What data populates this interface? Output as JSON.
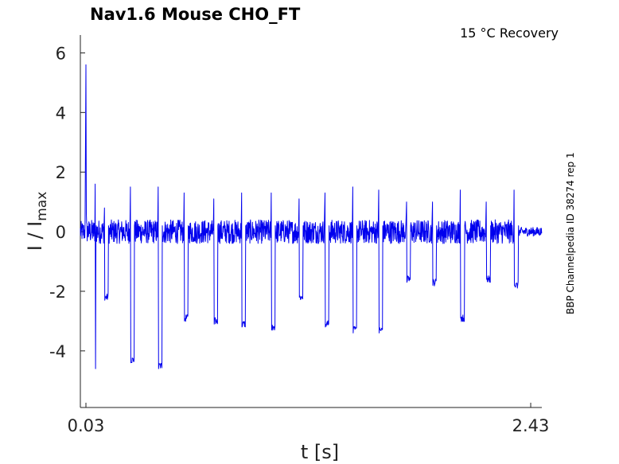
{
  "chart_data": {
    "type": "line",
    "title": "Nav1.6  Mouse  CHO_FT",
    "subtitle": "15 °C  Recovery",
    "side_note": "BBP Channelpedia ID 38274 rep 1",
    "xlabel": "t [s]",
    "ylabel_main": "I / I",
    "ylabel_sub": "max",
    "xlim": [
      0.0,
      2.49
    ],
    "ylim": [
      -5.9,
      6.6
    ],
    "x_ticks": [
      0.03,
      2.43
    ],
    "x_tick_labels": [
      "0.03",
      "2.43"
    ],
    "y_ticks": [
      -4,
      -2,
      0,
      2,
      4,
      6
    ],
    "y_tick_labels": [
      "-4",
      "-2",
      "0",
      "2",
      "4",
      "6"
    ],
    "grid": false,
    "line_color": "#0000ee",
    "initial_spike": {
      "x": 0.03,
      "peak": 5.6
    },
    "pulses": [
      {
        "t": 0.08,
        "peak": 1.6,
        "trough": -4.6,
        "steady": -0.2
      },
      {
        "t": 0.13,
        "peak": 0.8,
        "trough": -2.3,
        "steady": -2.2
      },
      {
        "t": 0.27,
        "peak": 1.5,
        "trough": -4.4,
        "steady": -4.3
      },
      {
        "t": 0.42,
        "peak": 1.5,
        "trough": -4.6,
        "steady": -4.5
      },
      {
        "t": 0.56,
        "peak": 1.3,
        "trough": -3.0,
        "steady": -2.9
      },
      {
        "t": 0.72,
        "peak": 1.1,
        "trough": -3.1,
        "steady": -3.0
      },
      {
        "t": 0.87,
        "peak": 1.3,
        "trough": -3.2,
        "steady": -3.1
      },
      {
        "t": 1.03,
        "peak": 1.3,
        "trough": -3.3,
        "steady": -3.2
      },
      {
        "t": 1.18,
        "peak": 1.1,
        "trough": -2.2,
        "steady": -2.2
      },
      {
        "t": 1.32,
        "peak": 1.3,
        "trough": -3.2,
        "steady": -3.1
      },
      {
        "t": 1.47,
        "peak": 1.5,
        "trough": -3.4,
        "steady": -3.3
      },
      {
        "t": 1.61,
        "peak": 1.4,
        "trough": -3.4,
        "steady": -3.3
      },
      {
        "t": 1.76,
        "peak": 1.0,
        "trough": -1.7,
        "steady": -1.6
      },
      {
        "t": 1.9,
        "peak": 1.0,
        "trough": -1.8,
        "steady": -1.7
      },
      {
        "t": 2.05,
        "peak": 1.4,
        "trough": -2.9,
        "steady": -2.9
      },
      {
        "t": 2.19,
        "peak": 1.0,
        "trough": -1.6,
        "steady": -1.6
      },
      {
        "t": 2.34,
        "peak": 1.4,
        "trough": -1.8,
        "steady": -1.8
      }
    ],
    "baseline": 0
  }
}
